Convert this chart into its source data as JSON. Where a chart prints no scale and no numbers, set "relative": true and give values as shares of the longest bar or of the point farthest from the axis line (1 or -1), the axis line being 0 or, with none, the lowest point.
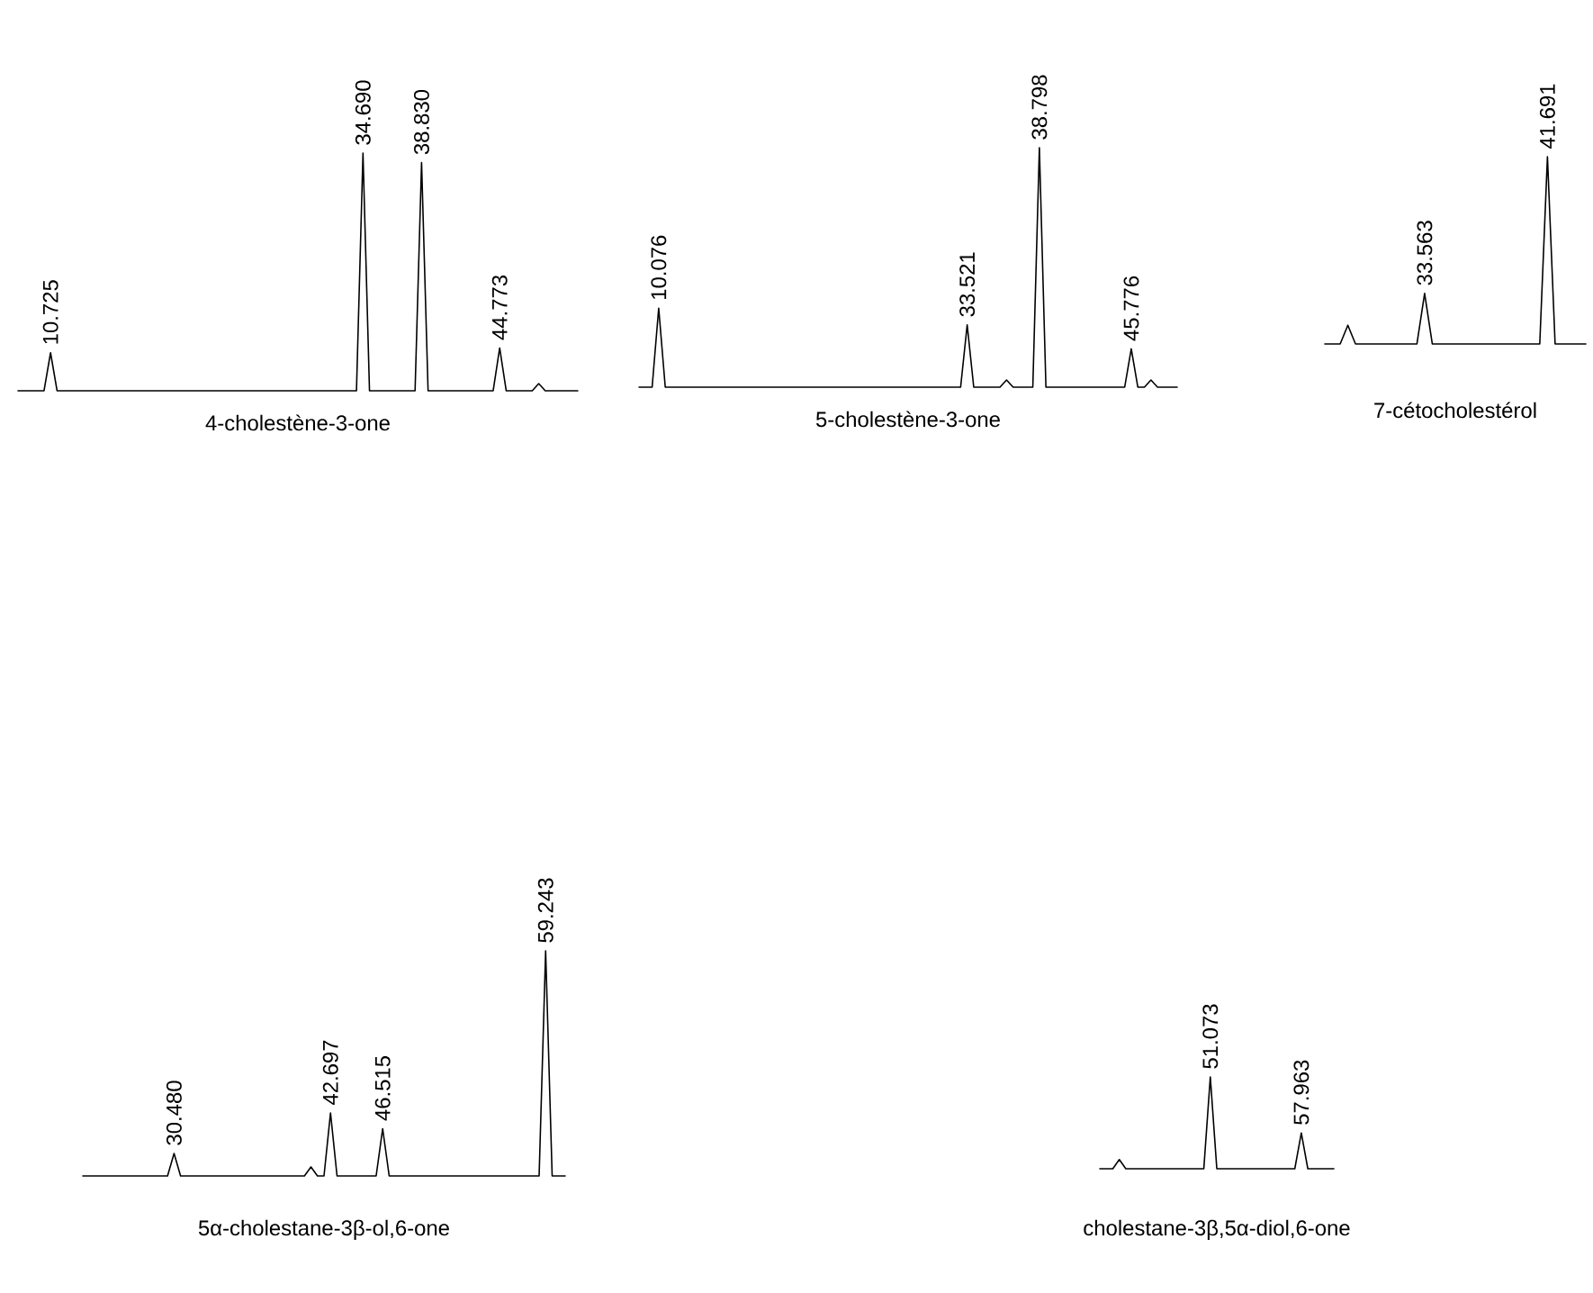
{
  "chart_data": [
    {
      "type": "line",
      "title": "4-cholestène-3-one",
      "relative": true,
      "categories": [
        null,
        null,
        null,
        null,
        null,
        null,
        null,
        null,
        null,
        null,
        null,
        null,
        null,
        null,
        null,
        null,
        null,
        null,
        null,
        null,
        null,
        null,
        null,
        null,
        null,
        null,
        null,
        null,
        null,
        null,
        null,
        null,
        null,
        null,
        null,
        null,
        null,
        null,
        null,
        null,
        null,
        null,
        null,
        null,
        null,
        null,
        null,
        null,
        null,
        null,
        null,
        null,
        null,
        null,
        null,
        null,
        null,
        null,
        null,
        null,
        null,
        null,
        null,
        null,
        null,
        null,
        null,
        null,
        null,
        null,
        null,
        null,
        null,
        null,
        null,
        null,
        null,
        null,
        null,
        null,
        null,
        null,
        null,
        null,
        null,
        null,
        null
      ],
      "series": [
        {
          "color": "#000000",
          "values": [
            0,
            0,
            0,
            0,
            0,
            0.16,
            0,
            0,
            0,
            0,
            0,
            0,
            0,
            0,
            0,
            0,
            0,
            0,
            0,
            0,
            0,
            0,
            0,
            0,
            0,
            0,
            0,
            0,
            0,
            0,
            0,
            0,
            0,
            0,
            0,
            0,
            0,
            0,
            0,
            0,
            0,
            0,
            0,
            0,
            0,
            0,
            0,
            0,
            0,
            0,
            0,
            0,
            0,
            1,
            0,
            0,
            0,
            0,
            0,
            0,
            0,
            0,
            0.96,
            0,
            0,
            0,
            0,
            0,
            0,
            0,
            0,
            0,
            0,
            0,
            0.18,
            0,
            0,
            0,
            0,
            0,
            0.03,
            0,
            0,
            0,
            0,
            0,
            0
          ]
        }
      ],
      "annotations": [
        {
          "text": "10.725",
          "y": 0.16
        },
        {
          "text": "34.690",
          "y": 1
        },
        {
          "text": "38.830",
          "y": 0.96
        },
        {
          "text": "44.773",
          "y": 0.18
        }
      ]
    },
    {
      "type": "line",
      "title": "5-cholestène-3-one",
      "relative": true,
      "categories": [
        null,
        null,
        null,
        null,
        null,
        null,
        null,
        null,
        null,
        null,
        null,
        null,
        null,
        null,
        null,
        null,
        null,
        null,
        null,
        null,
        null,
        null,
        null,
        null,
        null,
        null,
        null,
        null,
        null,
        null,
        null,
        null,
        null,
        null,
        null,
        null,
        null,
        null,
        null,
        null,
        null,
        null,
        null,
        null,
        null,
        null,
        null,
        null,
        null,
        null,
        null,
        null,
        null,
        null,
        null,
        null,
        null,
        null,
        null,
        null,
        null,
        null,
        null,
        null,
        null,
        null,
        null,
        null,
        null,
        null,
        null,
        null,
        null,
        null,
        null,
        null,
        null,
        null,
        null,
        null,
        null,
        null,
        null
      ],
      "series": [
        {
          "color": "#000000",
          "values": [
            0,
            0,
            0,
            0.33,
            0,
            0,
            0,
            0,
            0,
            0,
            0,
            0,
            0,
            0,
            0,
            0,
            0,
            0,
            0,
            0,
            0,
            0,
            0,
            0,
            0,
            0,
            0,
            0,
            0,
            0,
            0,
            0,
            0,
            0,
            0,
            0,
            0,
            0,
            0,
            0,
            0,
            0,
            0,
            0,
            0,
            0,
            0,
            0,
            0,
            0,
            0.26,
            0,
            0,
            0,
            0,
            0,
            0.03,
            0,
            0,
            0,
            0,
            1,
            0,
            0,
            0,
            0,
            0,
            0,
            0,
            0,
            0,
            0,
            0,
            0,
            0,
            0.16,
            0,
            0,
            0.03,
            0,
            0,
            0,
            0
          ]
        }
      ],
      "annotations": [
        {
          "text": "10.076",
          "y": 0.33
        },
        {
          "text": "33.521",
          "y": 0.26
        },
        {
          "text": "38.798",
          "y": 1
        },
        {
          "text": "45.776",
          "y": 0.16
        }
      ]
    },
    {
      "type": "line",
      "title": "7-cétocholestérol",
      "relative": true,
      "categories": [
        null,
        null,
        null,
        null,
        null,
        null,
        null,
        null,
        null,
        null,
        null,
        null,
        null,
        null,
        null,
        null,
        null,
        null,
        null,
        null,
        null,
        null,
        null,
        null,
        null,
        null,
        null,
        null,
        null,
        null,
        null,
        null,
        null,
        null,
        null
      ],
      "series": [
        {
          "color": "#000000",
          "values": [
            0,
            0,
            0,
            0.1,
            0,
            0,
            0,
            0,
            0,
            0,
            0,
            0,
            0,
            0.27,
            0,
            0,
            0,
            0,
            0,
            0,
            0,
            0,
            0,
            0,
            0,
            0,
            0,
            0,
            0,
            1,
            0,
            0,
            0,
            0,
            0
          ]
        }
      ],
      "annotations": [
        {
          "text": "33.563",
          "y": 0.27
        },
        {
          "text": "41.691",
          "y": 1
        }
      ]
    },
    {
      "type": "line",
      "title": "5α-cholestane-3β-ol,6-one",
      "relative": true,
      "categories": [
        null,
        null,
        null,
        null,
        null,
        null,
        null,
        null,
        null,
        null,
        null,
        null,
        null,
        null,
        null,
        null,
        null,
        null,
        null,
        null,
        null,
        null,
        null,
        null,
        null,
        null,
        null,
        null,
        null,
        null,
        null,
        null,
        null,
        null,
        null,
        null,
        null,
        null,
        null,
        null,
        null,
        null,
        null,
        null,
        null,
        null,
        null,
        null,
        null,
        null,
        null,
        null,
        null,
        null,
        null,
        null,
        null,
        null,
        null,
        null,
        null,
        null,
        null,
        null,
        null,
        null,
        null,
        null,
        null,
        null,
        null,
        null,
        null,
        null,
        null
      ],
      "series": [
        {
          "color": "#000000",
          "values": [
            0,
            0,
            0,
            0,
            0,
            0,
            0,
            0,
            0,
            0,
            0,
            0,
            0,
            0,
            0.1,
            0,
            0,
            0,
            0,
            0,
            0,
            0,
            0,
            0,
            0,
            0,
            0,
            0,
            0,
            0,
            0,
            0,
            0,
            0,
            0,
            0.04,
            0,
            0,
            0.28,
            0,
            0,
            0,
            0,
            0,
            0,
            0,
            0.21,
            0,
            0,
            0,
            0,
            0,
            0,
            0,
            0,
            0,
            0,
            0,
            0,
            0,
            0,
            0,
            0,
            0,
            0,
            0,
            0,
            0,
            0,
            0,
            0,
            1,
            0,
            0,
            0
          ]
        }
      ],
      "annotations": [
        {
          "text": "30.480",
          "y": 0.1
        },
        {
          "text": "42.697",
          "y": 0.28
        },
        {
          "text": "46.515",
          "y": 0.21
        },
        {
          "text": "59.243",
          "y": 1
        }
      ]
    },
    {
      "type": "line",
      "title": "cholestane-3β,5α-diol,6-one",
      "relative": true,
      "categories": [
        null,
        null,
        null,
        null,
        null,
        null,
        null,
        null,
        null,
        null,
        null,
        null,
        null,
        null,
        null,
        null,
        null,
        null,
        null,
        null,
        null,
        null,
        null,
        null,
        null,
        null,
        null,
        null,
        null,
        null,
        null,
        null,
        null,
        null,
        null,
        null,
        null
      ],
      "series": [
        {
          "color": "#000000",
          "values": [
            0,
            0,
            0,
            0.1,
            0,
            0,
            0,
            0,
            0,
            0,
            0,
            0,
            0,
            0,
            0,
            0,
            0,
            1,
            0,
            0,
            0,
            0,
            0,
            0,
            0,
            0,
            0,
            0,
            0,
            0,
            0,
            0.39,
            0,
            0,
            0,
            0,
            0
          ]
        }
      ],
      "annotations": [
        {
          "text": "51.073",
          "y": 1
        },
        {
          "text": "57.963",
          "y": 0.39
        }
      ]
    }
  ]
}
